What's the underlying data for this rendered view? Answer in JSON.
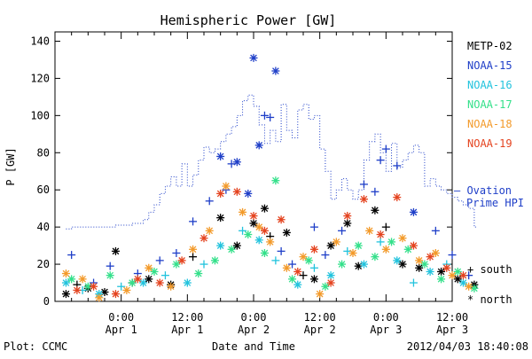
{
  "footer": {
    "left": "Plot: CCMC",
    "right": "2012/04/03 18:40:08"
  },
  "legend": {
    "satellites": [
      {
        "label": "METP-02",
        "color": "#000000"
      },
      {
        "label": "NOAA-15",
        "color": "#1f3fc8"
      },
      {
        "label": "NOAA-16",
        "color": "#22c3dd"
      },
      {
        "label": "NOAA-17",
        "color": "#33e08a"
      },
      {
        "label": "NOAA-18",
        "color": "#f39a2a"
      },
      {
        "label": "NOAA-19",
        "color": "#e4431f"
      }
    ],
    "ovation_line1": "— Ovation",
    "ovation_line2": "Prime HPI",
    "south_label": "+ south",
    "north_label": "* north"
  },
  "chart_data": {
    "type": "scatter",
    "title": "Hemispheric Power [GW]",
    "xlabel": "Date and Time",
    "ylabel": "P [GW]",
    "xlim": [
      -12,
      60
    ],
    "ylim": [
      0,
      145
    ],
    "yticks": [
      0,
      20,
      40,
      60,
      80,
      100,
      120,
      140
    ],
    "xticks": [
      {
        "x": 0,
        "time": "0:00",
        "date": "Apr 1"
      },
      {
        "x": 12,
        "time": "12:00",
        "date": "Apr 1"
      },
      {
        "x": 24,
        "time": "0:00",
        "date": "Apr 2"
      },
      {
        "x": 36,
        "time": "12:00",
        "date": "Apr 2"
      },
      {
        "x": 48,
        "time": "0:00",
        "date": "Apr 3"
      },
      {
        "x": 60,
        "time": "12:00",
        "date": "Apr 3"
      }
    ],
    "ovation_hpi": {
      "color": "#1f3fc8",
      "x": [
        -10,
        -9,
        -8,
        -7,
        -6,
        -5,
        -4,
        -3,
        -2,
        -1,
        0,
        1,
        2,
        3,
        4,
        5,
        6,
        7,
        8,
        9,
        10,
        11,
        12,
        13,
        14,
        15,
        16,
        17,
        18,
        19,
        20,
        21,
        22,
        23,
        24,
        25,
        26,
        27,
        28,
        29,
        30,
        31,
        32,
        33,
        34,
        35,
        36,
        37,
        38,
        39,
        40,
        41,
        42,
        43,
        44,
        45,
        46,
        47,
        48,
        49,
        50,
        51,
        52,
        53,
        54,
        55,
        56,
        57,
        58,
        59,
        60,
        61,
        62,
        63,
        64
      ],
      "y": [
        39,
        40,
        40,
        40,
        40,
        40,
        40,
        40,
        40,
        41,
        41,
        41,
        42,
        42,
        44,
        48,
        52,
        58,
        62,
        67,
        62,
        74,
        62,
        68,
        76,
        83,
        80,
        82,
        86,
        90,
        94,
        100,
        108,
        111,
        105,
        95,
        85,
        92,
        86,
        106,
        92,
        88,
        103,
        106,
        98,
        100,
        82,
        70,
        55,
        60,
        66,
        60,
        55,
        60,
        76,
        86,
        90,
        80,
        70,
        85,
        72,
        76,
        80,
        84,
        80,
        62,
        66,
        62,
        60,
        58,
        56,
        54,
        52,
        50,
        40
      ]
    },
    "series": [
      {
        "name": "METP-02",
        "color": "#000000",
        "points": [
          {
            "x": -10,
            "y": 4,
            "h": "north"
          },
          {
            "x": -8,
            "y": 9,
            "h": "south"
          },
          {
            "x": -6,
            "y": 7,
            "h": "north"
          },
          {
            "x": -3,
            "y": 5,
            "h": "north"
          },
          {
            "x": -1,
            "y": 27,
            "h": "north"
          },
          {
            "x": 2,
            "y": 10,
            "h": "south"
          },
          {
            "x": 5,
            "y": 12,
            "h": "north"
          },
          {
            "x": 9,
            "y": 9,
            "h": "north"
          },
          {
            "x": 13,
            "y": 24,
            "h": "south"
          },
          {
            "x": 18,
            "y": 45,
            "h": "north"
          },
          {
            "x": 21,
            "y": 30,
            "h": "north"
          },
          {
            "x": 24,
            "y": 42,
            "h": "north"
          },
          {
            "x": 26,
            "y": 50,
            "h": "north"
          },
          {
            "x": 27,
            "y": 35,
            "h": "south"
          },
          {
            "x": 30,
            "y": 37,
            "h": "north"
          },
          {
            "x": 33,
            "y": 14,
            "h": "south"
          },
          {
            "x": 35,
            "y": 12,
            "h": "north"
          },
          {
            "x": 38,
            "y": 30,
            "h": "north"
          },
          {
            "x": 41,
            "y": 42,
            "h": "north"
          },
          {
            "x": 43,
            "y": 19,
            "h": "north"
          },
          {
            "x": 46,
            "y": 49,
            "h": "north"
          },
          {
            "x": 48,
            "y": 40,
            "h": "south"
          },
          {
            "x": 51,
            "y": 20,
            "h": "north"
          },
          {
            "x": 54,
            "y": 18,
            "h": "north"
          },
          {
            "x": 58,
            "y": 16,
            "h": "north"
          },
          {
            "x": 61,
            "y": 12,
            "h": "north"
          },
          {
            "x": 64,
            "y": 9,
            "h": "north"
          }
        ]
      },
      {
        "name": "NOAA-15",
        "color": "#1f3fc8",
        "points": [
          {
            "x": -9,
            "y": 25,
            "h": "south"
          },
          {
            "x": -5,
            "y": 10,
            "h": "south"
          },
          {
            "x": -2,
            "y": 19,
            "h": "south"
          },
          {
            "x": 3,
            "y": 15,
            "h": "south"
          },
          {
            "x": 7,
            "y": 22,
            "h": "south"
          },
          {
            "x": 10,
            "y": 26,
            "h": "south"
          },
          {
            "x": 13,
            "y": 43,
            "h": "south"
          },
          {
            "x": 16,
            "y": 54,
            "h": "south"
          },
          {
            "x": 18,
            "y": 78,
            "h": "north"
          },
          {
            "x": 19,
            "y": 60,
            "h": "south"
          },
          {
            "x": 20,
            "y": 74,
            "h": "south"
          },
          {
            "x": 21,
            "y": 75,
            "h": "north"
          },
          {
            "x": 23,
            "y": 58,
            "h": "north"
          },
          {
            "x": 24,
            "y": 131,
            "h": "north"
          },
          {
            "x": 25,
            "y": 84,
            "h": "north"
          },
          {
            "x": 26,
            "y": 100,
            "h": "south"
          },
          {
            "x": 27,
            "y": 99,
            "h": "south"
          },
          {
            "x": 28,
            "y": 124,
            "h": "north"
          },
          {
            "x": 29,
            "y": 27,
            "h": "south"
          },
          {
            "x": 31,
            "y": 20,
            "h": "south"
          },
          {
            "x": 35,
            "y": 40,
            "h": "south"
          },
          {
            "x": 37,
            "y": 25,
            "h": "south"
          },
          {
            "x": 40,
            "y": 38,
            "h": "south"
          },
          {
            "x": 44,
            "y": 63,
            "h": "south"
          },
          {
            "x": 46,
            "y": 59,
            "h": "south"
          },
          {
            "x": 47,
            "y": 76,
            "h": "south"
          },
          {
            "x": 48,
            "y": 82,
            "h": "south"
          },
          {
            "x": 50,
            "y": 73,
            "h": "south"
          },
          {
            "x": 53,
            "y": 48,
            "h": "north"
          },
          {
            "x": 57,
            "y": 38,
            "h": "south"
          },
          {
            "x": 60,
            "y": 25,
            "h": "south"
          },
          {
            "x": 63,
            "y": 14,
            "h": "south"
          }
        ]
      },
      {
        "name": "NOAA-16",
        "color": "#22c3dd",
        "points": [
          {
            "x": -10,
            "y": 10,
            "h": "north"
          },
          {
            "x": -7,
            "y": 6,
            "h": "south"
          },
          {
            "x": -4,
            "y": 4,
            "h": "north"
          },
          {
            "x": 0,
            "y": 8,
            "h": "south"
          },
          {
            "x": 4,
            "y": 10,
            "h": "north"
          },
          {
            "x": 8,
            "y": 14,
            "h": "south"
          },
          {
            "x": 12,
            "y": 10,
            "h": "north"
          },
          {
            "x": 15,
            "y": 20,
            "h": "south"
          },
          {
            "x": 18,
            "y": 30,
            "h": "north"
          },
          {
            "x": 22,
            "y": 38,
            "h": "south"
          },
          {
            "x": 25,
            "y": 33,
            "h": "north"
          },
          {
            "x": 28,
            "y": 22,
            "h": "south"
          },
          {
            "x": 32,
            "y": 9,
            "h": "north"
          },
          {
            "x": 35,
            "y": 18,
            "h": "south"
          },
          {
            "x": 38,
            "y": 14,
            "h": "north"
          },
          {
            "x": 41,
            "y": 27,
            "h": "south"
          },
          {
            "x": 44,
            "y": 20,
            "h": "north"
          },
          {
            "x": 47,
            "y": 32,
            "h": "south"
          },
          {
            "x": 50,
            "y": 22,
            "h": "north"
          },
          {
            "x": 53,
            "y": 10,
            "h": "south"
          },
          {
            "x": 56,
            "y": 16,
            "h": "north"
          },
          {
            "x": 59,
            "y": 20,
            "h": "south"
          },
          {
            "x": 62,
            "y": 10,
            "h": "north"
          }
        ]
      },
      {
        "name": "NOAA-17",
        "color": "#33e08a",
        "points": [
          {
            "x": -9,
            "y": 12,
            "h": "north"
          },
          {
            "x": -6,
            "y": 8,
            "h": "north"
          },
          {
            "x": -2,
            "y": 14,
            "h": "north"
          },
          {
            "x": 2,
            "y": 10,
            "h": "north"
          },
          {
            "x": 6,
            "y": 16,
            "h": "north"
          },
          {
            "x": 10,
            "y": 20,
            "h": "north"
          },
          {
            "x": 14,
            "y": 15,
            "h": "north"
          },
          {
            "x": 17,
            "y": 22,
            "h": "north"
          },
          {
            "x": 20,
            "y": 28,
            "h": "north"
          },
          {
            "x": 23,
            "y": 36,
            "h": "north"
          },
          {
            "x": 26,
            "y": 26,
            "h": "north"
          },
          {
            "x": 28,
            "y": 65,
            "h": "north"
          },
          {
            "x": 31,
            "y": 12,
            "h": "north"
          },
          {
            "x": 34,
            "y": 22,
            "h": "north"
          },
          {
            "x": 37,
            "y": 8,
            "h": "north"
          },
          {
            "x": 40,
            "y": 20,
            "h": "north"
          },
          {
            "x": 43,
            "y": 30,
            "h": "north"
          },
          {
            "x": 46,
            "y": 24,
            "h": "north"
          },
          {
            "x": 49,
            "y": 32,
            "h": "north"
          },
          {
            "x": 52,
            "y": 28,
            "h": "north"
          },
          {
            "x": 55,
            "y": 20,
            "h": "north"
          },
          {
            "x": 58,
            "y": 12,
            "h": "north"
          },
          {
            "x": 61,
            "y": 16,
            "h": "north"
          },
          {
            "x": 64,
            "y": 7,
            "h": "north"
          }
        ]
      },
      {
        "name": "NOAA-18",
        "color": "#f39a2a",
        "points": [
          {
            "x": -10,
            "y": 15,
            "h": "north"
          },
          {
            "x": -7,
            "y": 12,
            "h": "north"
          },
          {
            "x": -4,
            "y": 2,
            "h": "north"
          },
          {
            "x": 1,
            "y": 6,
            "h": "north"
          },
          {
            "x": 5,
            "y": 18,
            "h": "north"
          },
          {
            "x": 9,
            "y": 8,
            "h": "north"
          },
          {
            "x": 13,
            "y": 28,
            "h": "north"
          },
          {
            "x": 16,
            "y": 38,
            "h": "north"
          },
          {
            "x": 19,
            "y": 62,
            "h": "north"
          },
          {
            "x": 22,
            "y": 48,
            "h": "north"
          },
          {
            "x": 25,
            "y": 40,
            "h": "north"
          },
          {
            "x": 27,
            "y": 32,
            "h": "north"
          },
          {
            "x": 30,
            "y": 18,
            "h": "north"
          },
          {
            "x": 33,
            "y": 24,
            "h": "north"
          },
          {
            "x": 36,
            "y": 4,
            "h": "north"
          },
          {
            "x": 39,
            "y": 32,
            "h": "north"
          },
          {
            "x": 42,
            "y": 26,
            "h": "north"
          },
          {
            "x": 45,
            "y": 38,
            "h": "north"
          },
          {
            "x": 48,
            "y": 28,
            "h": "north"
          },
          {
            "x": 51,
            "y": 34,
            "h": "north"
          },
          {
            "x": 54,
            "y": 22,
            "h": "north"
          },
          {
            "x": 57,
            "y": 26,
            "h": "north"
          },
          {
            "x": 60,
            "y": 14,
            "h": "north"
          },
          {
            "x": 63,
            "y": 8,
            "h": "north"
          }
        ]
      },
      {
        "name": "NOAA-19",
        "color": "#e4431f",
        "points": [
          {
            "x": -8,
            "y": 6,
            "h": "north"
          },
          {
            "x": -5,
            "y": 8,
            "h": "north"
          },
          {
            "x": -1,
            "y": 4,
            "h": "north"
          },
          {
            "x": 3,
            "y": 12,
            "h": "north"
          },
          {
            "x": 7,
            "y": 10,
            "h": "north"
          },
          {
            "x": 11,
            "y": 22,
            "h": "north"
          },
          {
            "x": 15,
            "y": 34,
            "h": "north"
          },
          {
            "x": 18,
            "y": 58,
            "h": "north"
          },
          {
            "x": 21,
            "y": 59,
            "h": "north"
          },
          {
            "x": 24,
            "y": 46,
            "h": "north"
          },
          {
            "x": 26,
            "y": 38,
            "h": "north"
          },
          {
            "x": 29,
            "y": 44,
            "h": "north"
          },
          {
            "x": 32,
            "y": 16,
            "h": "north"
          },
          {
            "x": 35,
            "y": 28,
            "h": "north"
          },
          {
            "x": 38,
            "y": 10,
            "h": "north"
          },
          {
            "x": 41,
            "y": 46,
            "h": "north"
          },
          {
            "x": 44,
            "y": 55,
            "h": "north"
          },
          {
            "x": 47,
            "y": 36,
            "h": "north"
          },
          {
            "x": 50,
            "y": 56,
            "h": "north"
          },
          {
            "x": 53,
            "y": 30,
            "h": "north"
          },
          {
            "x": 56,
            "y": 24,
            "h": "north"
          },
          {
            "x": 59,
            "y": 18,
            "h": "north"
          },
          {
            "x": 62,
            "y": 14,
            "h": "north"
          }
        ]
      }
    ]
  }
}
